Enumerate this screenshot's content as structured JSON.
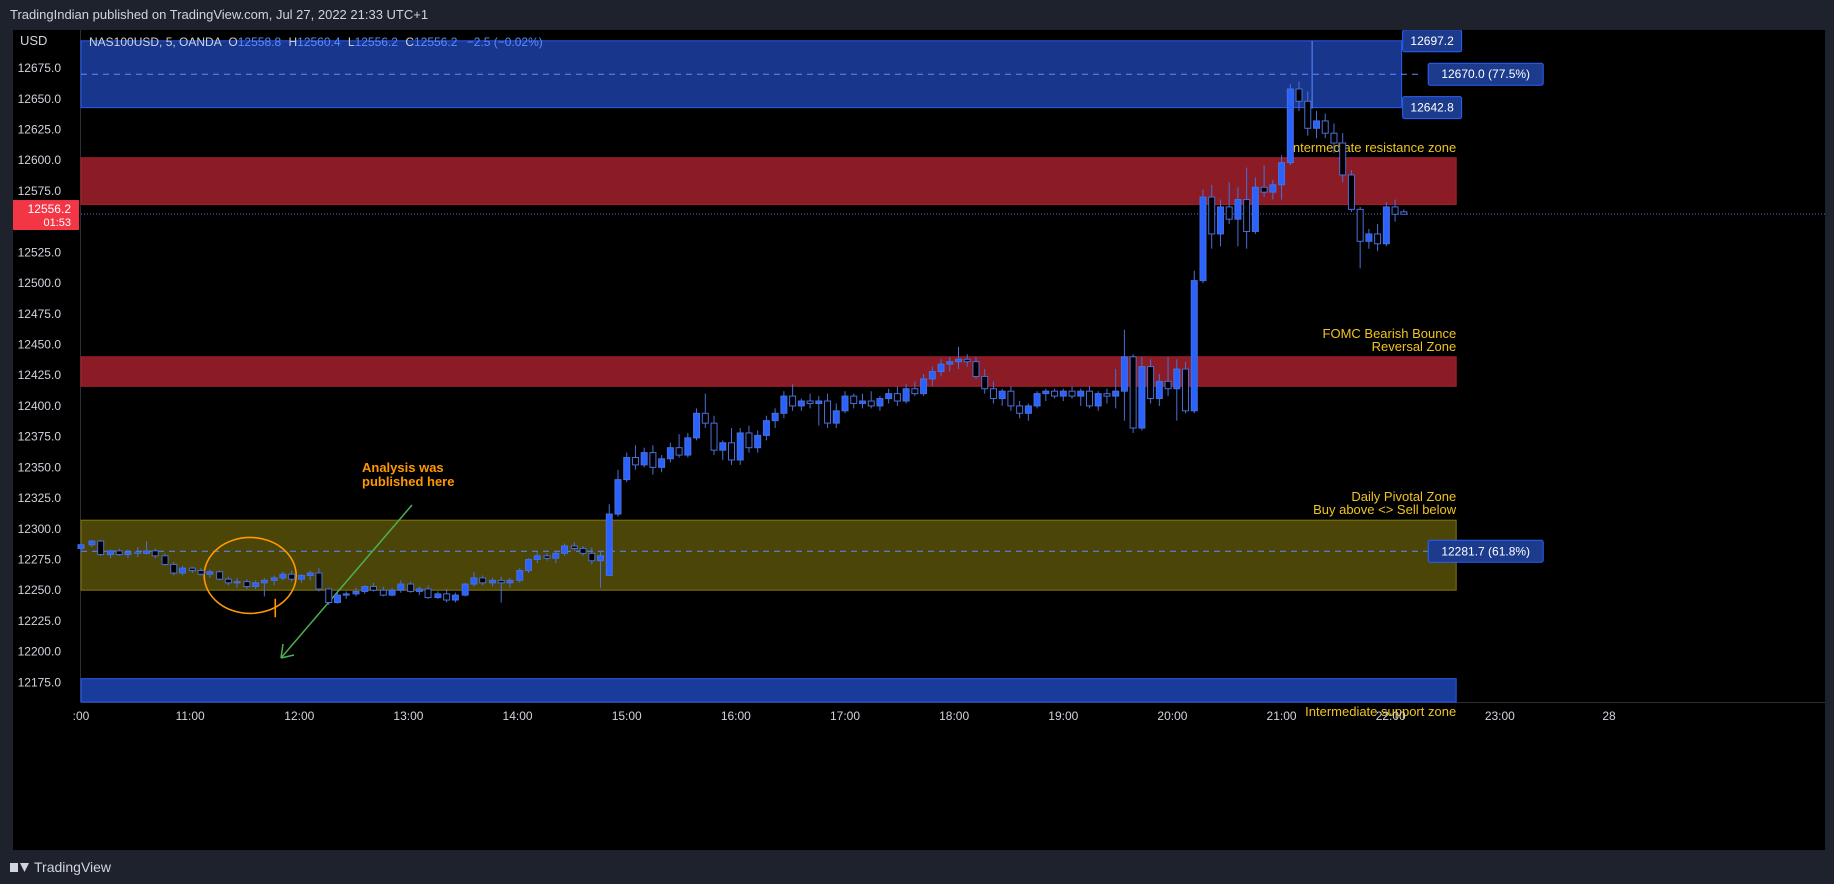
{
  "header": {
    "published_text": "TradingIndian published on TradingView.com, Jul 27, 2022 21:33 UTC+1"
  },
  "footer": {
    "brand": "TradingView"
  },
  "chart_data": {
    "type": "candlestick",
    "currency": "USD",
    "symbol_line": {
      "symbol": "NAS100USD, 5, OANDA",
      "open_label": "O",
      "open": "12558.8",
      "high_label": "H",
      "high": "12560.4",
      "low_label": "L",
      "low": "12556.2",
      "close_label": "C",
      "close": "12556.2",
      "change": "−2.5 (−0.02%)"
    },
    "y_axis": {
      "range": [
        12159,
        12706
      ],
      "ticks": [
        "12675.0",
        "12650.0",
        "12625.0",
        "12600.0",
        "12575.0",
        "12550.0",
        "12525.0",
        "12500.0",
        "12475.0",
        "12450.0",
        "12425.0",
        "12400.0",
        "12375.0",
        "12350.0",
        "12325.0",
        "12300.0",
        "12275.0",
        "12250.0",
        "12225.0",
        "12200.0",
        "12175.0"
      ]
    },
    "x_axis": {
      "range": [
        10,
        24
      ],
      "ticks": [
        {
          "t": 10,
          "label": ":00"
        },
        {
          "t": 11,
          "label": "11:00"
        },
        {
          "t": 12,
          "label": "12:00"
        },
        {
          "t": 13,
          "label": "13:00"
        },
        {
          "t": 14,
          "label": "14:00"
        },
        {
          "t": 15,
          "label": "15:00"
        },
        {
          "t": 16,
          "label": "16:00"
        },
        {
          "t": 17,
          "label": "17:00"
        },
        {
          "t": 18,
          "label": "18:00"
        },
        {
          "t": 19,
          "label": "19:00"
        },
        {
          "t": 20,
          "label": "20:00"
        },
        {
          "t": 21,
          "label": "21:00"
        },
        {
          "t": 22,
          "label": "22:00"
        },
        {
          "t": 23,
          "label": "23:00"
        },
        {
          "t": 24,
          "label": "28"
        }
      ]
    },
    "current_price": {
      "price": 12556.2,
      "label": "12556.2",
      "countdown": "01:53",
      "color": "#f23645"
    },
    "zones": [
      {
        "low": 12642.8,
        "high": 12697.2,
        "t_end": 22.1,
        "color": "#2962ff",
        "opacity": 0.55,
        "label": "",
        "mid_label": "12670.0 (77.5%)",
        "mid": 12670.0,
        "top_label": "12697.2",
        "bottom_label": "12642.8"
      },
      {
        "low": 12564,
        "high": 12602,
        "t_end": 22.6,
        "color": "#b2222f",
        "opacity": 0.78,
        "label": "Intermediate resistance zone"
      },
      {
        "low": 12416,
        "high": 12440,
        "t_end": 22.6,
        "color": "#b2222f",
        "opacity": 0.78,
        "label": "FOMC Bearish Bounce",
        "label2": "Reversal Zone"
      },
      {
        "low": 12250,
        "high": 12307,
        "t_end": 22.6,
        "color": "#8b7d0e",
        "opacity": 0.55,
        "label": "Daily Pivotal Zone",
        "label2": "Buy above <> Sell below",
        "mid_label": "12281.7 (61.8%)",
        "mid": 12281.7
      },
      {
        "low": 12159,
        "high": 12178,
        "t_end": 22.6,
        "color": "#2962ff",
        "opacity": 0.6,
        "label": "Intermediate support zone"
      }
    ],
    "annotation": {
      "text1": "Analysis was",
      "text2": "published here",
      "color": "#ff9800",
      "arrow_color": "#4caf50"
    },
    "candles": [
      [
        10.0,
        12284,
        12288,
        12280,
        12287
      ],
      [
        10.1,
        12287,
        12291,
        12285,
        12290
      ],
      [
        10.18,
        12290,
        12291,
        12278,
        12279
      ],
      [
        10.27,
        12279,
        12283,
        12276,
        12282
      ],
      [
        10.35,
        12282,
        12284,
        12278,
        12279
      ],
      [
        10.43,
        12279,
        12283,
        12276,
        12281
      ],
      [
        10.52,
        12281,
        12285,
        12277,
        12280
      ],
      [
        10.6,
        12280,
        12290,
        12279,
        12282
      ],
      [
        10.68,
        12282,
        12284,
        12276,
        12278
      ],
      [
        10.77,
        12278,
        12280,
        12270,
        12271
      ],
      [
        10.85,
        12271,
        12273,
        12262,
        12264
      ],
      [
        10.93,
        12264,
        12270,
        12262,
        12268
      ],
      [
        11.02,
        12268,
        12269,
        12264,
        12266
      ],
      [
        11.1,
        12266,
        12268,
        12262,
        12263
      ],
      [
        11.18,
        12263,
        12267,
        12260,
        12265
      ],
      [
        11.27,
        12265,
        12266,
        12258,
        12259
      ],
      [
        11.35,
        12259,
        12261,
        12254,
        12256
      ],
      [
        11.43,
        12256,
        12260,
        12252,
        12257
      ],
      [
        11.52,
        12257,
        12259,
        12251,
        12253
      ],
      [
        11.6,
        12253,
        12258,
        12251,
        12256
      ],
      [
        11.68,
        12256,
        12260,
        12245,
        12258
      ],
      [
        11.77,
        12258,
        12262,
        12254,
        12260
      ],
      [
        11.85,
        12260,
        12265,
        12258,
        12263
      ],
      [
        11.93,
        12263,
        12266,
        12257,
        12259
      ],
      [
        12.02,
        12259,
        12263,
        12256,
        12262
      ],
      [
        12.1,
        12262,
        12266,
        12258,
        12264
      ],
      [
        12.18,
        12264,
        12268,
        12249,
        12251
      ],
      [
        12.27,
        12251,
        12252,
        12238,
        12240
      ],
      [
        12.35,
        12240,
        12248,
        12239,
        12246
      ],
      [
        12.43,
        12246,
        12249,
        12243,
        12247
      ],
      [
        12.52,
        12247,
        12252,
        12245,
        12249
      ],
      [
        12.6,
        12249,
        12254,
        12247,
        12253
      ],
      [
        12.68,
        12253,
        12256,
        12249,
        12250
      ],
      [
        12.77,
        12250,
        12253,
        12245,
        12246
      ],
      [
        12.85,
        12246,
        12252,
        12245,
        12250
      ],
      [
        12.93,
        12250,
        12258,
        12248,
        12255
      ],
      [
        13.02,
        12255,
        12257,
        12248,
        12249
      ],
      [
        13.1,
        12249,
        12253,
        12246,
        12251
      ],
      [
        13.18,
        12251,
        12254,
        12243,
        12244
      ],
      [
        13.27,
        12244,
        12249,
        12243,
        12247
      ],
      [
        13.35,
        12247,
        12251,
        12240,
        12242
      ],
      [
        13.43,
        12242,
        12248,
        12240,
        12246
      ],
      [
        13.52,
        12246,
        12256,
        12245,
        12255
      ],
      [
        13.6,
        12255,
        12265,
        12253,
        12260
      ],
      [
        13.68,
        12260,
        12262,
        12254,
        12256
      ],
      [
        13.77,
        12256,
        12260,
        12253,
        12258
      ],
      [
        13.85,
        12258,
        12261,
        12240,
        12256
      ],
      [
        13.93,
        12256,
        12260,
        12252,
        12258
      ],
      [
        14.02,
        12258,
        12268,
        12256,
        12266
      ],
      [
        14.1,
        12266,
        12276,
        12264,
        12275
      ],
      [
        14.18,
        12275,
        12281,
        12272,
        12278
      ],
      [
        14.27,
        12278,
        12280,
        12274,
        12276
      ],
      [
        14.35,
        12276,
        12282,
        12272,
        12280
      ],
      [
        14.43,
        12280,
        12288,
        12278,
        12286
      ],
      [
        14.52,
        12286,
        12289,
        12282,
        12284
      ],
      [
        14.6,
        12284,
        12286,
        12278,
        12280
      ],
      [
        14.68,
        12280,
        12285,
        12271,
        12274
      ],
      [
        14.76,
        12274,
        12282,
        12252,
        12278
      ],
      [
        14.84,
        12262,
        12320,
        12262,
        12312
      ],
      [
        14.92,
        12312,
        12348,
        12310,
        12340
      ],
      [
        15.0,
        12340,
        12362,
        12338,
        12358
      ],
      [
        15.08,
        12358,
        12368,
        12348,
        12352
      ],
      [
        15.16,
        12352,
        12366,
        12350,
        12362
      ],
      [
        15.24,
        12362,
        12368,
        12344,
        12350
      ],
      [
        15.32,
        12350,
        12360,
        12346,
        12357
      ],
      [
        15.4,
        12357,
        12370,
        12354,
        12366
      ],
      [
        15.48,
        12366,
        12377,
        12358,
        12360
      ],
      [
        15.56,
        12360,
        12378,
        12358,
        12374
      ],
      [
        15.64,
        12374,
        12398,
        12372,
        12394
      ],
      [
        15.72,
        12394,
        12410,
        12382,
        12386
      ],
      [
        15.8,
        12386,
        12392,
        12360,
        12364
      ],
      [
        15.88,
        12364,
        12372,
        12356,
        12370
      ],
      [
        15.96,
        12370,
        12382,
        12352,
        12356
      ],
      [
        16.04,
        12356,
        12382,
        12352,
        12378
      ],
      [
        16.12,
        12378,
        12384,
        12362,
        12366
      ],
      [
        16.2,
        12366,
        12380,
        12362,
        12376
      ],
      [
        16.28,
        12376,
        12392,
        12372,
        12388
      ],
      [
        16.36,
        12388,
        12398,
        12382,
        12394
      ],
      [
        16.44,
        12394,
        12412,
        12390,
        12408
      ],
      [
        16.52,
        12408,
        12418,
        12396,
        12400
      ],
      [
        16.6,
        12400,
        12406,
        12396,
        12404
      ],
      [
        16.68,
        12404,
        12410,
        12398,
        12402
      ],
      [
        16.76,
        12402,
        12408,
        12384,
        12404
      ],
      [
        16.84,
        12404,
        12410,
        12382,
        12386
      ],
      [
        16.92,
        12386,
        12402,
        12382,
        12396
      ],
      [
        17.0,
        12396,
        12412,
        12394,
        12408
      ],
      [
        17.08,
        12408,
        12410,
        12398,
        12402
      ],
      [
        17.16,
        12402,
        12410,
        12398,
        12404
      ],
      [
        17.24,
        12404,
        12412,
        12398,
        12400
      ],
      [
        17.32,
        12400,
        12408,
        12396,
        12406
      ],
      [
        17.4,
        12406,
        12414,
        12402,
        12410
      ],
      [
        17.48,
        12410,
        12416,
        12400,
        12404
      ],
      [
        17.56,
        12404,
        12418,
        12402,
        12414
      ],
      [
        17.64,
        12414,
        12420,
        12408,
        12410
      ],
      [
        17.72,
        12410,
        12426,
        12408,
        12422
      ],
      [
        17.8,
        12422,
        12432,
        12416,
        12428
      ],
      [
        17.88,
        12428,
        12438,
        12424,
        12434
      ],
      [
        17.96,
        12434,
        12440,
        12428,
        12436
      ],
      [
        18.04,
        12436,
        12448,
        12430,
        12438
      ],
      [
        18.12,
        12438,
        12442,
        12432,
        12436
      ],
      [
        18.2,
        12436,
        12440,
        12422,
        12424
      ],
      [
        18.28,
        12424,
        12430,
        12410,
        12414
      ],
      [
        18.36,
        12414,
        12420,
        12402,
        12406
      ],
      [
        18.44,
        12406,
        12414,
        12400,
        12412
      ],
      [
        18.52,
        12412,
        12416,
        12396,
        12400
      ],
      [
        18.6,
        12400,
        12404,
        12390,
        12394
      ],
      [
        18.68,
        12394,
        12402,
        12388,
        12400
      ],
      [
        18.76,
        12400,
        12412,
        12398,
        12410
      ],
      [
        18.84,
        12410,
        12414,
        12404,
        12412
      ],
      [
        18.92,
        12412,
        12414,
        12406,
        12408
      ],
      [
        19.0,
        12408,
        12414,
        12404,
        12412
      ],
      [
        19.08,
        12412,
        12416,
        12406,
        12408
      ],
      [
        19.16,
        12408,
        12414,
        12400,
        12412
      ],
      [
        19.24,
        12412,
        12416,
        12398,
        12400
      ],
      [
        19.32,
        12400,
        12412,
        12396,
        12410
      ],
      [
        19.4,
        12410,
        12414,
        12402,
        12408
      ],
      [
        19.48,
        12408,
        12430,
        12398,
        12412
      ],
      [
        19.56,
        12412,
        12462,
        12388,
        12440
      ],
      [
        19.64,
        12440,
        12442,
        12378,
        12382
      ],
      [
        19.72,
        12382,
        12440,
        12380,
        12432
      ],
      [
        19.8,
        12432,
        12438,
        12402,
        12406
      ],
      [
        19.88,
        12406,
        12426,
        12400,
        12420
      ],
      [
        19.96,
        12420,
        12440,
        12408,
        12414
      ],
      [
        20.04,
        12414,
        12438,
        12388,
        12430
      ],
      [
        20.12,
        12430,
        12436,
        12394,
        12396
      ],
      [
        20.2,
        12396,
        12510,
        12394,
        12502
      ],
      [
        20.28,
        12502,
        12576,
        12500,
        12570
      ],
      [
        20.36,
        12570,
        12580,
        12528,
        12540
      ],
      [
        20.44,
        12540,
        12568,
        12530,
        12562
      ],
      [
        20.52,
        12562,
        12582,
        12548,
        12552
      ],
      [
        20.6,
        12552,
        12578,
        12530,
        12568
      ],
      [
        20.68,
        12568,
        12594,
        12528,
        12542
      ],
      [
        20.76,
        12542,
        12586,
        12540,
        12578
      ],
      [
        20.84,
        12578,
        12596,
        12570,
        12574
      ],
      [
        20.92,
        12574,
        12584,
        12568,
        12580
      ],
      [
        21.0,
        12580,
        12604,
        12568,
        12598
      ],
      [
        21.08,
        12598,
        12662,
        12596,
        12658
      ],
      [
        21.16,
        12658,
        12664,
        12640,
        12648
      ],
      [
        21.24,
        12648,
        12656,
        12620,
        12626
      ],
      [
        21.32,
        12626,
        12640,
        12618,
        12632
      ],
      [
        21.4,
        12632,
        12638,
        12618,
        12622
      ],
      [
        21.48,
        12622,
        12630,
        12606,
        12614
      ],
      [
        21.56,
        12614,
        12622,
        12582,
        12588
      ],
      [
        21.64,
        12588,
        12592,
        12558,
        12560
      ],
      [
        21.72,
        12560,
        12562,
        12512,
        12534
      ],
      [
        21.8,
        12534,
        12544,
        12528,
        12540
      ],
      [
        21.88,
        12540,
        12548,
        12526,
        12532
      ],
      [
        21.96,
        12532,
        12566,
        12530,
        12562
      ],
      [
        22.04,
        12562,
        12568,
        12550,
        12556
      ],
      [
        22.12,
        12558,
        12560,
        12556,
        12556
      ]
    ]
  }
}
